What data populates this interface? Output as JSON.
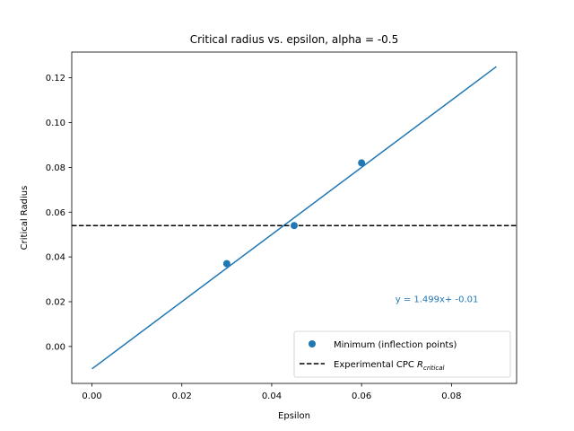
{
  "chart_data": {
    "type": "scatter",
    "title": "Critical radius vs. epsilon, alpha = -0.5",
    "xlabel": "Epsilon",
    "ylabel": "Critical Radius",
    "xlim": [
      -0.0045,
      0.0945
    ],
    "ylim": [
      -0.0165,
      0.1315
    ],
    "xticks": [
      0.0,
      0.02,
      0.04,
      0.06,
      0.08
    ],
    "xtick_labels": [
      "0.00",
      "0.02",
      "0.04",
      "0.06",
      "0.08"
    ],
    "yticks": [
      0.0,
      0.02,
      0.04,
      0.06,
      0.08,
      0.1,
      0.12
    ],
    "ytick_labels": [
      "0.00",
      "0.02",
      "0.04",
      "0.06",
      "0.08",
      "0.10",
      "0.12"
    ],
    "grid": false,
    "legend_position": "lower-right",
    "colors": {
      "series": "#1f77b4",
      "reference": "#000000"
    },
    "series": [
      {
        "name": "Minimum (inflection points)",
        "kind": "scatter",
        "x": [
          0.03,
          0.045,
          0.06
        ],
        "y": [
          0.037,
          0.054,
          0.082
        ]
      },
      {
        "name": "",
        "kind": "line",
        "x": [
          0.0,
          0.09
        ],
        "y": [
          -0.01,
          0.125
        ]
      }
    ],
    "reference_line": {
      "name_main": "Experimental CPC ",
      "name_math": "R",
      "name_sub": "critical",
      "y": 0.054
    },
    "annotation": {
      "text": "y = 1.499x+ -0.01",
      "x": 0.0675,
      "y": 0.0198
    }
  }
}
